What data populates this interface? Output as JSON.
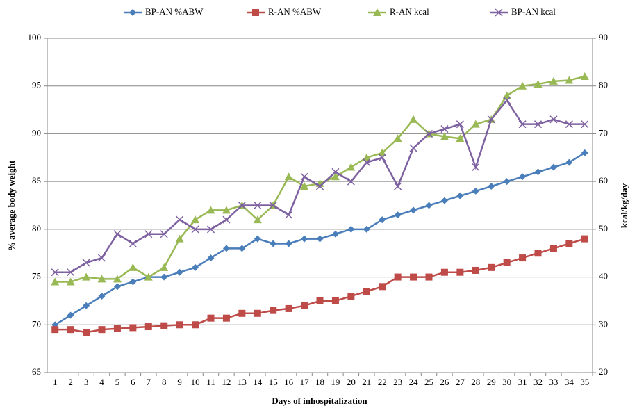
{
  "chart_data": {
    "type": "line",
    "x_label": "Days of inhospitalization",
    "y_label": "% average body weight",
    "y2_label": "kcal/kg/day",
    "categories": [
      "1",
      "2",
      "3",
      "4",
      "5",
      "6",
      "7",
      "8",
      "9",
      "10",
      "11",
      "12",
      "13",
      "14",
      "15",
      "16",
      "17",
      "18",
      "19",
      "20",
      "21",
      "22",
      "23",
      "24",
      "25",
      "26",
      "27",
      "28",
      "29",
      "30",
      "31",
      "32",
      "33",
      "34",
      "35"
    ],
    "ylim": [
      65,
      100
    ],
    "yticks": [
      65,
      70,
      75,
      80,
      85,
      90,
      95,
      100
    ],
    "y2lim": [
      20,
      90
    ],
    "y2ticks": [
      20,
      30,
      40,
      50,
      60,
      70,
      80,
      90
    ],
    "grid": true,
    "legend": "top",
    "series": [
      {
        "name": "BP-AN %ABW",
        "color": "#4a7ebb",
        "marker": "diamond",
        "values": [
          70,
          71,
          72,
          73,
          74,
          74.5,
          75,
          75,
          75.5,
          76,
          77,
          78,
          78,
          79,
          78.5,
          78.5,
          79,
          79,
          79.5,
          80,
          80,
          81,
          81.5,
          82,
          82.5,
          83,
          83.5,
          84,
          84.5,
          85,
          85.5,
          86,
          86.5,
          87,
          88
        ]
      },
      {
        "name": "R-AN %ABW",
        "color": "#be4b48",
        "marker": "square",
        "values": [
          69.5,
          69.5,
          69.2,
          69.5,
          69.6,
          69.7,
          69.8,
          69.9,
          70,
          70,
          70.7,
          70.7,
          71.2,
          71.2,
          71.5,
          71.7,
          72,
          72.5,
          72.5,
          73,
          73.5,
          74,
          75,
          75,
          75,
          75.5,
          75.5,
          75.7,
          76,
          76.5,
          77,
          77.5,
          78,
          78.5,
          79
        ]
      },
      {
        "name": "R-AN kcal",
        "color": "#98b954",
        "marker": "triangle",
        "axis": "y2",
        "values": [
          39,
          39,
          40,
          39.6,
          39.6,
          42,
          40,
          42,
          48,
          52,
          54,
          54,
          55,
          52,
          55,
          61,
          59,
          59.6,
          61,
          63,
          65,
          66,
          69,
          73,
          70,
          69.4,
          69,
          72,
          73,
          78,
          80,
          80.4,
          81,
          81.2,
          82
        ]
      },
      {
        "name": "BP-AN kcal",
        "color": "#7d60a0",
        "marker": "x",
        "axis": "y2",
        "values": [
          41,
          41,
          43,
          44,
          49,
          47,
          49,
          49,
          52,
          50,
          50,
          52,
          55,
          55,
          55,
          53,
          61,
          59,
          62,
          60,
          64,
          65,
          59,
          67,
          70,
          71,
          72,
          63,
          73,
          77,
          72,
          72,
          73,
          72,
          72
        ]
      }
    ]
  }
}
